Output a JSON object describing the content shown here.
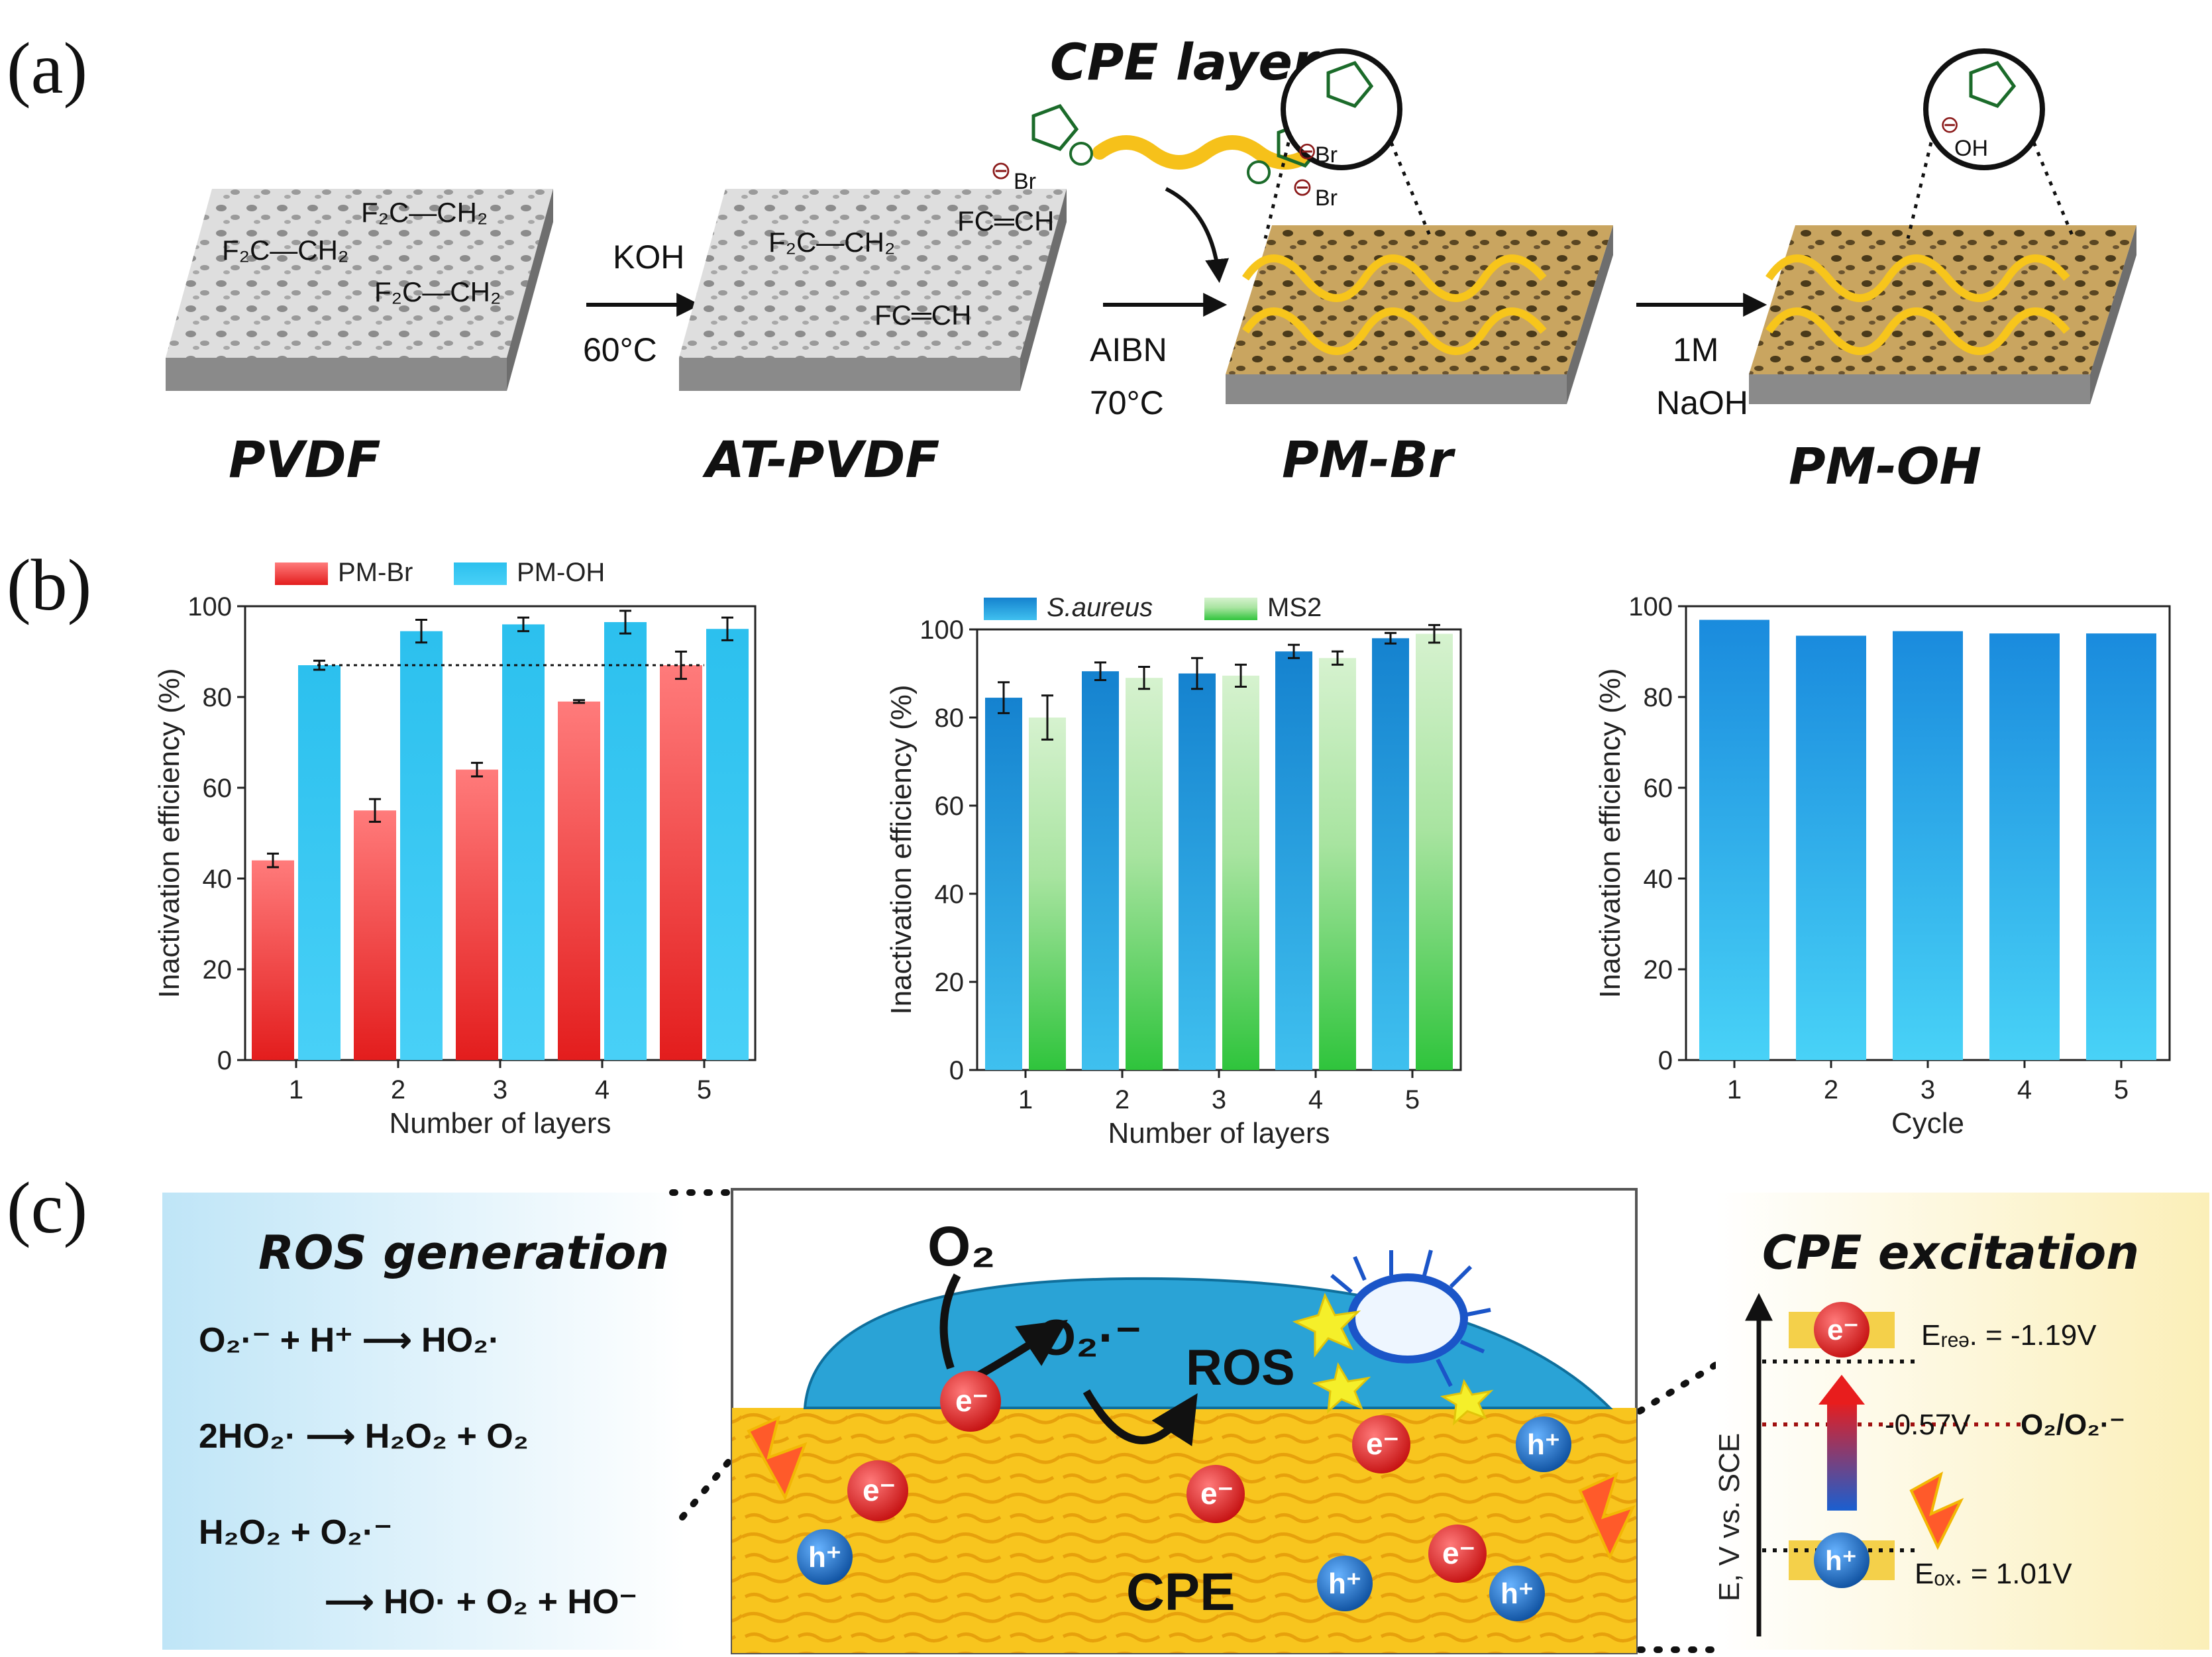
{
  "panels": {
    "a": "(a)",
    "b": "(b)",
    "c": "(c)"
  },
  "scheme": {
    "cpe_layers_title": "CPE layers",
    "membranes": [
      {
        "name": "PVDF",
        "formulas": [
          "F₂C—CH₂",
          "F₂C—CH₂",
          "F₂C—CH₂"
        ]
      },
      {
        "name": "AT-PVDF",
        "formulas": [
          "F₂C—CH₂",
          "FC═CH",
          "FC═CH"
        ]
      },
      {
        "name": "PM-Br"
      },
      {
        "name": "PM-OH"
      }
    ],
    "steps": [
      {
        "top": "KOH",
        "bottom": "60°C"
      },
      {
        "top": "AIBN",
        "bottom": "70°C"
      },
      {
        "top": "1M",
        "bottom": "NaOH"
      }
    ],
    "counter_ions": {
      "bromide": "Br",
      "hydroxide": "OH"
    }
  },
  "chart_data": [
    {
      "type": "bar",
      "title": "",
      "xlabel": "Number of layers",
      "ylabel": "Inactivation efficiency (%)",
      "categories": [
        "1",
        "2",
        "3",
        "4",
        "5"
      ],
      "ylim": [
        0,
        100
      ],
      "yticks": [
        "0",
        "20",
        "40",
        "60",
        "80",
        "100"
      ],
      "legend": "top",
      "reference_line": 87,
      "series": [
        {
          "name": "PM-Br",
          "values": [
            44,
            55,
            64,
            79,
            87
          ],
          "errors": [
            1.5,
            2.5,
            1.5,
            0.3,
            3
          ],
          "color": "#ee3b3b"
        },
        {
          "name": "PM-OH",
          "values": [
            87,
            94.5,
            96,
            96.5,
            95
          ],
          "errors": [
            1,
            2.5,
            1.5,
            2.5,
            2.5
          ],
          "color": "#22c3ee"
        }
      ]
    },
    {
      "type": "bar",
      "title": "",
      "xlabel": "Number of layers",
      "ylabel": "Inactivation efficiency (%)",
      "categories": [
        "1",
        "2",
        "3",
        "4",
        "5"
      ],
      "ylim": [
        0,
        100
      ],
      "yticks": [
        "0",
        "20",
        "40",
        "60",
        "80",
        "100"
      ],
      "legend": "top",
      "series": [
        {
          "name": "S.aureus",
          "values": [
            84.5,
            90.5,
            90,
            95,
            98
          ],
          "errors": [
            3.5,
            2,
            3.5,
            1.5,
            1.2
          ],
          "color": "#1a8fd6"
        },
        {
          "name": "MS2",
          "values": [
            80,
            89,
            89.5,
            93.5,
            99
          ],
          "errors": [
            5,
            2.5,
            2.5,
            1.5,
            2
          ],
          "color": "#3fcc55"
        }
      ]
    },
    {
      "type": "bar",
      "title": "",
      "xlabel": "Cycle",
      "ylabel": "Inactivation efficiency (%)",
      "categories": [
        "1",
        "2",
        "3",
        "4",
        "5"
      ],
      "ylim": [
        0,
        100
      ],
      "yticks": [
        "0",
        "20",
        "40",
        "60",
        "80",
        "100"
      ],
      "series": [
        {
          "name": "Cycle",
          "values": [
            97,
            93.5,
            94.5,
            94,
            94
          ],
          "color": "#1a9ee0"
        }
      ]
    }
  ],
  "mechanism": {
    "ros_title": "ROS generation",
    "equations": [
      "O₂·⁻ + H⁺ ⟶ HO₂·",
      "2HO₂· ⟶ H₂O₂ + O₂",
      "H₂O₂ + O₂·⁻",
      "⟶ HO· + O₂ + HO⁻"
    ],
    "o2": "O₂",
    "superoxide": "O₂·⁻",
    "ros": "ROS",
    "cpe": "CPE",
    "electron": "e⁻",
    "hole": "h⁺",
    "excitation_title": "CPE excitation",
    "axis_label": "E, V vs. SCE",
    "e_red": "Eᵣₑₔ. = -1.19V",
    "e_mid": "-0.57V",
    "e_mid_couple": "O₂/O₂·⁻",
    "e_ox": "Eₒₓ. = 1.01V",
    "colors": {
      "electron": "#e01818",
      "hole": "#1a6fc0",
      "film": "#f7c21d",
      "water": "#2fa8d8"
    }
  }
}
